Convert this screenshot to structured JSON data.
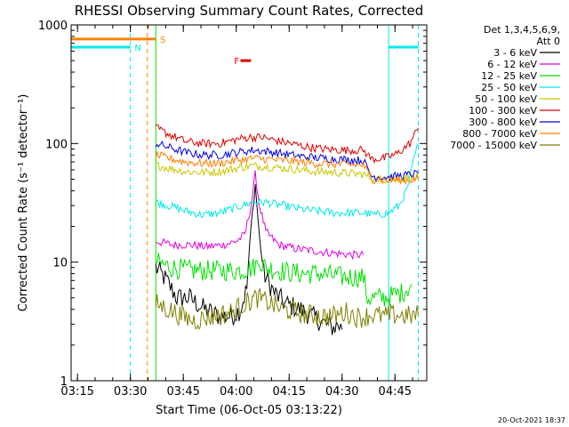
{
  "chart_data": {
    "type": "line",
    "title": "RHESSI Observing Summary Count Rates, Corrected",
    "xlabel": "Start Time (06-Oct-05 03:13:22)",
    "ylabel": "Corrected Count Rate (s⁻¹ detector⁻¹)",
    "x_range_min": [
      3.22,
      4.9
    ],
    "y_range": [
      1,
      1000
    ],
    "y_scale": "log",
    "x_ticks": [
      {
        "v": 3.25,
        "label": "03:15"
      },
      {
        "v": 3.5,
        "label": "03:30"
      },
      {
        "v": 3.75,
        "label": "03:45"
      },
      {
        "v": 4.0,
        "label": "04:00"
      },
      {
        "v": 4.25,
        "label": "04:15"
      },
      {
        "v": 4.5,
        "label": "04:30"
      },
      {
        "v": 4.75,
        "label": "04:45"
      }
    ],
    "y_ticks": [
      {
        "v": 1,
        "label": "1"
      },
      {
        "v": 10,
        "label": "10"
      },
      {
        "v": 100,
        "label": "100"
      },
      {
        "v": 1000,
        "label": "1000"
      }
    ],
    "legend_header": [
      "Det 1,3,4,5,6,9,",
      "Att 0"
    ],
    "series": [
      {
        "name": "3 - 6 keV",
        "color": "#000000",
        "points": [
          [
            3.62,
            9
          ],
          [
            3.67,
            7
          ],
          [
            3.72,
            5
          ],
          [
            3.78,
            5
          ],
          [
            3.85,
            4
          ],
          [
            3.92,
            3.5
          ],
          [
            3.98,
            3.5
          ],
          [
            4.02,
            4
          ],
          [
            4.05,
            6
          ],
          [
            4.07,
            20
          ],
          [
            4.09,
            45
          ],
          [
            4.11,
            16
          ],
          [
            4.13,
            8
          ],
          [
            4.18,
            5.5
          ],
          [
            4.23,
            4.5
          ],
          [
            4.3,
            4
          ],
          [
            4.36,
            3.5
          ],
          [
            4.42,
            3
          ],
          [
            4.46,
            2.8
          ],
          [
            4.48,
            3
          ],
          [
            4.5,
            2.7
          ]
        ]
      },
      {
        "name": "6 - 12 keV",
        "color": "#e000e0",
        "points": [
          [
            3.62,
            15
          ],
          [
            3.7,
            14
          ],
          [
            3.78,
            14
          ],
          [
            3.86,
            13.5
          ],
          [
            3.94,
            14
          ],
          [
            4.0,
            15
          ],
          [
            4.04,
            17
          ],
          [
            4.07,
            30
          ],
          [
            4.09,
            55
          ],
          [
            4.11,
            30
          ],
          [
            4.14,
            18
          ],
          [
            4.2,
            14
          ],
          [
            4.28,
            13
          ],
          [
            4.36,
            12.5
          ],
          [
            4.44,
            12
          ],
          [
            4.55,
            11.5
          ],
          [
            4.6,
            11.5
          ]
        ]
      },
      {
        "name": "12 - 25 keV",
        "color": "#00e000",
        "points": [
          [
            3.62,
            10
          ],
          [
            3.7,
            9
          ],
          [
            3.78,
            8.5
          ],
          [
            3.86,
            8.5
          ],
          [
            3.94,
            8.5
          ],
          [
            4.02,
            8.5
          ],
          [
            4.08,
            9
          ],
          [
            4.11,
            10
          ],
          [
            4.14,
            9
          ],
          [
            4.2,
            8.5
          ],
          [
            4.3,
            8
          ],
          [
            4.4,
            8
          ],
          [
            4.5,
            7.5
          ],
          [
            4.6,
            7.5
          ],
          [
            4.62,
            5
          ],
          [
            4.7,
            5
          ],
          [
            4.78,
            5.5
          ],
          [
            4.83,
            6.5
          ]
        ]
      },
      {
        "name": "25 - 50 keV",
        "color": "#00e8e8",
        "points": [
          [
            3.62,
            32
          ],
          [
            3.68,
            30
          ],
          [
            3.76,
            27
          ],
          [
            3.84,
            25
          ],
          [
            3.92,
            26
          ],
          [
            4.0,
            29
          ],
          [
            4.08,
            32
          ],
          [
            4.14,
            32
          ],
          [
            4.22,
            30
          ],
          [
            4.3,
            28
          ],
          [
            4.38,
            27
          ],
          [
            4.46,
            26
          ],
          [
            4.54,
            26
          ],
          [
            4.6,
            26
          ],
          [
            4.66,
            25
          ],
          [
            4.72,
            26
          ],
          [
            4.77,
            30
          ],
          [
            4.81,
            42
          ],
          [
            4.84,
            75
          ],
          [
            4.86,
            100
          ]
        ]
      },
      {
        "name": "50 - 100 keV",
        "color": "#c8c800",
        "points": [
          [
            3.62,
            66
          ],
          [
            3.68,
            62
          ],
          [
            3.76,
            58
          ],
          [
            3.84,
            57
          ],
          [
            3.92,
            58
          ],
          [
            4.0,
            62
          ],
          [
            4.08,
            65
          ],
          [
            4.14,
            64
          ],
          [
            4.22,
            62
          ],
          [
            4.3,
            60
          ],
          [
            4.38,
            58
          ],
          [
            4.46,
            57
          ],
          [
            4.54,
            56
          ],
          [
            4.6,
            55
          ],
          [
            4.66,
            50
          ],
          [
            4.74,
            50
          ],
          [
            4.8,
            51
          ],
          [
            4.86,
            52
          ]
        ]
      },
      {
        "name": "100 - 300 keV",
        "color": "#e00000",
        "points": [
          [
            3.62,
            135
          ],
          [
            3.68,
            120
          ],
          [
            3.76,
            104
          ],
          [
            3.84,
            100
          ],
          [
            3.92,
            100
          ],
          [
            4.0,
            108
          ],
          [
            4.06,
            113
          ],
          [
            4.12,
            113
          ],
          [
            4.2,
            105
          ],
          [
            4.28,
            98
          ],
          [
            4.36,
            92
          ],
          [
            4.44,
            89
          ],
          [
            4.5,
            88
          ],
          [
            4.56,
            88
          ],
          [
            4.6,
            88
          ],
          [
            4.64,
            74
          ],
          [
            4.7,
            75
          ],
          [
            4.76,
            82
          ],
          [
            4.82,
            100
          ],
          [
            4.86,
            135
          ]
        ]
      },
      {
        "name": "300 - 800 keV",
        "color": "#0000e8",
        "points": [
          [
            3.62,
            100
          ],
          [
            3.68,
            93
          ],
          [
            3.76,
            84
          ],
          [
            3.84,
            80
          ],
          [
            3.92,
            80
          ],
          [
            4.0,
            84
          ],
          [
            4.08,
            88
          ],
          [
            4.14,
            86
          ],
          [
            4.22,
            82
          ],
          [
            4.3,
            78
          ],
          [
            4.38,
            76
          ],
          [
            4.46,
            74
          ],
          [
            4.54,
            73
          ],
          [
            4.6,
            72
          ],
          [
            4.64,
            53
          ],
          [
            4.72,
            52
          ],
          [
            4.8,
            54
          ],
          [
            4.86,
            56
          ]
        ]
      },
      {
        "name": "800 - 7000 keV",
        "color": "#ff8000",
        "points": [
          [
            3.62,
            80
          ],
          [
            3.68,
            75
          ],
          [
            3.76,
            70
          ],
          [
            3.84,
            68
          ],
          [
            3.92,
            68
          ],
          [
            4.0,
            72
          ],
          [
            4.08,
            75
          ],
          [
            4.14,
            74
          ],
          [
            4.22,
            72
          ],
          [
            4.3,
            70
          ],
          [
            4.38,
            68
          ],
          [
            4.46,
            67
          ],
          [
            4.54,
            66
          ],
          [
            4.6,
            66
          ],
          [
            4.64,
            50
          ],
          [
            4.72,
            49
          ],
          [
            4.8,
            49
          ],
          [
            4.86,
            50
          ]
        ]
      },
      {
        "name": "7000 - 15000 keV",
        "color": "#808000",
        "points": [
          [
            3.62,
            4.5
          ],
          [
            3.68,
            4
          ],
          [
            3.74,
            3.5
          ],
          [
            3.8,
            3.2
          ],
          [
            3.86,
            3.4
          ],
          [
            3.92,
            3.6
          ],
          [
            3.98,
            3.8
          ],
          [
            4.04,
            4.5
          ],
          [
            4.1,
            5
          ],
          [
            4.16,
            4.5
          ],
          [
            4.22,
            4
          ],
          [
            4.28,
            3.8
          ],
          [
            4.34,
            3.6
          ],
          [
            4.4,
            3.5
          ],
          [
            4.46,
            3.5
          ],
          [
            4.52,
            3.8
          ],
          [
            4.58,
            3.4
          ],
          [
            4.64,
            3.6
          ],
          [
            4.7,
            3.5
          ],
          [
            4.76,
            3.6
          ],
          [
            4.82,
            3.5
          ],
          [
            4.86,
            3.6
          ]
        ]
      }
    ],
    "state_bars": [
      {
        "label": "S",
        "color": "#ff8000",
        "x": [
          3.22,
          3.62
        ],
        "y": 760,
        "label_x": 3.64
      },
      {
        "label": "N",
        "color": "#00e8e8",
        "x": [
          3.22,
          3.5
        ],
        "y": 650,
        "label_x": 3.52
      },
      {
        "label": "N",
        "color": "#00e8e8",
        "x": [
          4.72,
          4.86
        ],
        "y": 650,
        "label_x": null
      },
      {
        "label": "F",
        "color": "#e00000",
        "x": [
          4.02,
          4.07
        ],
        "y": 500,
        "label_x": 3.99
      }
    ],
    "vertical_markers": [
      {
        "x": 3.22,
        "color": "#00e8e8",
        "style": "solid"
      },
      {
        "x": 3.5,
        "color": "#00e8e8",
        "style": "dashed"
      },
      {
        "x": 3.58,
        "color": "#ff8000",
        "style": "dashed"
      },
      {
        "x": 3.62,
        "color": "#00e000",
        "style": "solid"
      },
      {
        "x": 4.72,
        "color": "#00e8e8",
        "style": "solid"
      },
      {
        "x": 4.86,
        "color": "#00e8e8",
        "style": "dashed"
      }
    ],
    "timestamp": "20-Oct-2021 18:37"
  }
}
